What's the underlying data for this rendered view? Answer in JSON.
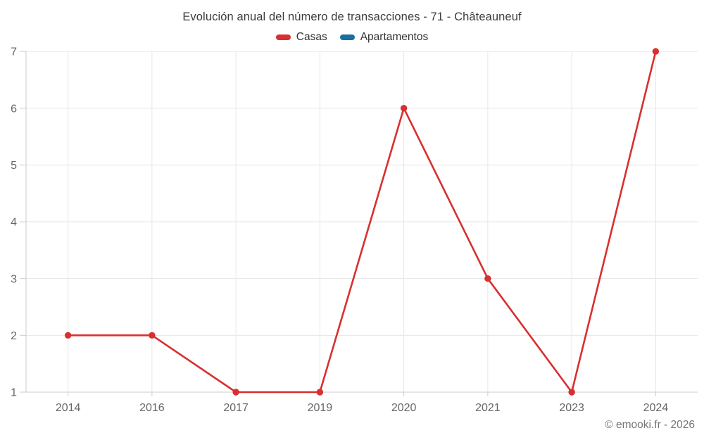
{
  "header": {
    "title": "Evolución anual del número de transacciones - 71 - Châteauneuf"
  },
  "legend": [
    {
      "label": "Casas",
      "color": "#d7302f"
    },
    {
      "label": "Apartamentos",
      "color": "#17709f"
    }
  ],
  "watermark": "© emooki.fr - 2026",
  "colors": {
    "series_casas": "#d7302f",
    "series_apartamentos": "#17709f",
    "gridline": "#e6e6e6",
    "axis_line": "#cccccc",
    "tick": "#cccccc",
    "axis_label": "#666666",
    "title_text": "#3b3b3b",
    "background": "#ffffff"
  },
  "chart_data": {
    "type": "line",
    "title": "Evolución anual del número de transacciones - 71 - Châteauneuf",
    "xlabel": "",
    "ylabel": "",
    "categories": [
      "2014",
      "2016",
      "2017",
      "2019",
      "2020",
      "2021",
      "2023",
      "2024"
    ],
    "series": [
      {
        "name": "Casas",
        "color": "#d7302f",
        "values": [
          2,
          2,
          1,
          1,
          6,
          3,
          1,
          7
        ]
      },
      {
        "name": "Apartamentos",
        "color": "#17709f",
        "values": []
      }
    ],
    "yticks": [
      1,
      2,
      3,
      4,
      5,
      6,
      7
    ],
    "ylim": [
      1,
      7
    ],
    "grid": true,
    "legend_position": "top"
  }
}
